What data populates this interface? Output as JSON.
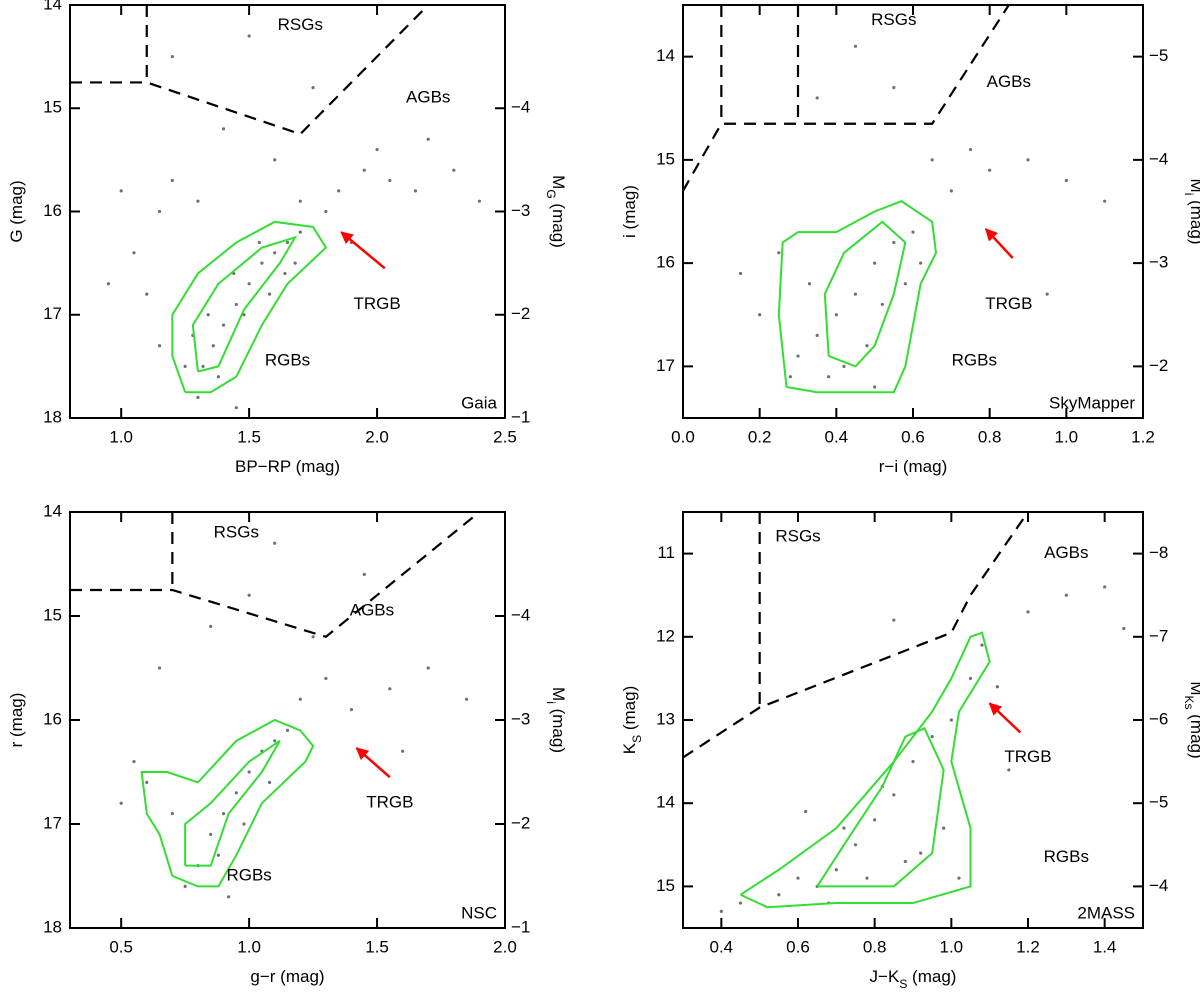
{
  "chart_data": [
    {
      "type": "scatter",
      "survey": "Gaia",
      "xlabel": [
        {
          "text": "BP−RP (mag)"
        }
      ],
      "ylabel": [
        {
          "text": "G (mag)"
        }
      ],
      "y2label": [
        {
          "text": "M"
        },
        {
          "text": "G",
          "sub": true
        },
        {
          "text": " (mag)"
        }
      ],
      "xlim": [
        0.8,
        2.5
      ],
      "xticks": [
        {
          "value": 1.0,
          "label": "1.0"
        },
        {
          "value": 1.5,
          "label": "1.5"
        },
        {
          "value": 2.0,
          "label": "2.0"
        },
        {
          "value": 2.5,
          "label": "2.5"
        }
      ],
      "ylim": [
        14,
        18
      ],
      "yticks": [
        14,
        15,
        16,
        17,
        18
      ],
      "y2lim": [
        -5,
        -1
      ],
      "y2ticks": [
        {
          "value": -4,
          "label": "−4"
        },
        {
          "value": -3,
          "label": "−3"
        },
        {
          "value": -2,
          "label": "−2"
        },
        {
          "value": -1,
          "label": "−1"
        }
      ],
      "color": "#707070",
      "contour_color": "#33dd33",
      "annotation_color": "#ff0000",
      "x": [
        1.32,
        1.36,
        1.4,
        1.45,
        1.5,
        1.55,
        1.6,
        1.65,
        1.7,
        1.28,
        1.38,
        1.48,
        1.58,
        1.68,
        1.34,
        1.44,
        1.54,
        1.64,
        1.25,
        1.3,
        1.1,
        1.05,
        1.15,
        0.95,
        1.2,
        1.85,
        1.95,
        2.05,
        2.15,
        2.3,
        2.4,
        1.9,
        2.0,
        1.6,
        1.4,
        1.2,
        1.75,
        1.5,
        1.3,
        1.0,
        2.2,
        1.8,
        1.45,
        1.7,
        1.15
      ],
      "y": [
        17.5,
        17.3,
        17.1,
        16.9,
        16.7,
        16.5,
        16.4,
        16.3,
        16.2,
        17.2,
        17.6,
        17.0,
        16.8,
        16.5,
        17.0,
        16.6,
        16.3,
        16.6,
        17.5,
        17.8,
        16.8,
        16.4,
        16.0,
        16.7,
        15.7,
        15.8,
        15.6,
        15.7,
        15.8,
        15.6,
        15.9,
        16.3,
        15.4,
        15.5,
        15.2,
        14.5,
        14.8,
        14.3,
        15.9,
        15.8,
        15.3,
        16.0,
        17.9,
        15.9,
        17.3
      ],
      "contours": [
        {
          "x": [
            1.25,
            1.2,
            1.2,
            1.3,
            1.45,
            1.6,
            1.75,
            1.8,
            1.65,
            1.55,
            1.45,
            1.35,
            1.25
          ],
          "y": [
            17.75,
            17.4,
            17.0,
            16.6,
            16.3,
            16.1,
            16.15,
            16.35,
            16.7,
            17.1,
            17.6,
            17.75,
            17.75
          ]
        },
        {
          "x": [
            1.3,
            1.28,
            1.38,
            1.55,
            1.68,
            1.62,
            1.48,
            1.38,
            1.3
          ],
          "y": [
            17.55,
            17.1,
            16.7,
            16.35,
            16.25,
            16.5,
            16.95,
            17.5,
            17.55
          ]
        }
      ],
      "boundaries": [
        {
          "x": [
            1.1,
            1.1
          ],
          "y": [
            14,
            14.75
          ]
        },
        {
          "x": [
            0.8,
            1.1,
            1.7,
            2.2
          ],
          "y": [
            14.75,
            14.75,
            15.25,
            14
          ]
        }
      ],
      "annotations": [
        {
          "text": "RSGs",
          "x": 1.7,
          "y": 14.2
        },
        {
          "text": "AGBs",
          "x": 2.2,
          "y": 14.9
        },
        {
          "text": "TRGB",
          "x": 2.0,
          "y": 16.9
        },
        {
          "text": "RGBs",
          "x": 1.65,
          "y": 17.45
        }
      ],
      "arrow": {
        "x": [
          2.03,
          1.86
        ],
        "y": [
          16.55,
          16.2
        ]
      }
    },
    {
      "type": "scatter",
      "survey": "SkyMapper",
      "xlabel": [
        {
          "text": "r−i (mag)"
        }
      ],
      "ylabel": [
        {
          "text": "i (mag)"
        }
      ],
      "y2label": [
        {
          "text": "M"
        },
        {
          "text": "i",
          "sub": true
        },
        {
          "text": " (mag)"
        }
      ],
      "xlim": [
        0.0,
        1.2
      ],
      "xticks": [
        {
          "value": 0.0,
          "label": "0.0"
        },
        {
          "value": 0.2,
          "label": "0.2"
        },
        {
          "value": 0.4,
          "label": "0.4"
        },
        {
          "value": 0.6,
          "label": "0.6"
        },
        {
          "value": 0.8,
          "label": "0.8"
        },
        {
          "value": 1.0,
          "label": "1.0"
        },
        {
          "value": 1.2,
          "label": "1.2"
        }
      ],
      "ylim": [
        13.5,
        17.5
      ],
      "yticks": [
        14,
        15,
        16,
        17
      ],
      "y2lim": [
        -5.5,
        -1.5
      ],
      "y2ticks": [
        {
          "value": -5,
          "label": "−5"
        },
        {
          "value": -4,
          "label": "−4"
        },
        {
          "value": -3,
          "label": "−3"
        },
        {
          "value": -2,
          "label": "−2"
        }
      ],
      "color": "#707070",
      "contour_color": "#33dd33",
      "annotation_color": "#ff0000",
      "x": [
        0.3,
        0.35,
        0.4,
        0.45,
        0.5,
        0.55,
        0.6,
        0.38,
        0.48,
        0.58,
        0.42,
        0.52,
        0.33,
        0.62,
        0.25,
        0.2,
        0.15,
        0.7,
        0.8,
        0.9,
        1.0,
        1.1,
        0.75,
        0.55,
        0.45,
        0.35,
        0.65,
        0.95,
        0.5,
        0.28
      ],
      "y": [
        16.9,
        16.7,
        16.5,
        16.3,
        16.0,
        15.8,
        15.7,
        17.1,
        16.8,
        16.2,
        17.0,
        16.4,
        16.2,
        16.0,
        15.9,
        16.5,
        16.1,
        15.3,
        15.1,
        15.0,
        15.2,
        15.4,
        14.9,
        14.3,
        13.9,
        14.4,
        15.0,
        16.3,
        17.2,
        17.1
      ],
      "contours": [
        {
          "x": [
            0.27,
            0.25,
            0.26,
            0.3,
            0.4,
            0.5,
            0.57,
            0.65,
            0.66,
            0.62,
            0.6,
            0.58,
            0.55,
            0.45,
            0.35,
            0.27
          ],
          "y": [
            17.2,
            16.5,
            15.8,
            15.7,
            15.7,
            15.5,
            15.4,
            15.6,
            15.9,
            16.2,
            16.6,
            17.0,
            17.25,
            17.25,
            17.25,
            17.2
          ]
        },
        {
          "x": [
            0.38,
            0.37,
            0.42,
            0.52,
            0.58,
            0.55,
            0.5,
            0.45,
            0.38
          ],
          "y": [
            16.9,
            16.3,
            15.9,
            15.6,
            15.8,
            16.3,
            16.8,
            17.0,
            16.9
          ]
        }
      ],
      "boundaries": [
        {
          "x": [
            0.1,
            0.1
          ],
          "y": [
            13.5,
            14.65
          ]
        },
        {
          "x": [
            0.3,
            0.3
          ],
          "y": [
            13.5,
            14.65
          ]
        },
        {
          "x": [
            0.0,
            0.1,
            0.65,
            0.85
          ],
          "y": [
            15.3,
            14.65,
            14.65,
            13.5
          ]
        }
      ],
      "annotations": [
        {
          "text": "RSGs",
          "x": 0.55,
          "y": 13.65
        },
        {
          "text": "AGBs",
          "x": 0.85,
          "y": 14.25
        },
        {
          "text": "TRGB",
          "x": 0.85,
          "y": 16.4
        },
        {
          "text": "RGBs",
          "x": 0.76,
          "y": 16.95
        }
      ],
      "arrow": {
        "x": [
          0.86,
          0.79
        ],
        "y": [
          15.95,
          15.67
        ]
      }
    },
    {
      "type": "scatter",
      "survey": "NSC",
      "xlabel": [
        {
          "text": "g−r (mag)"
        }
      ],
      "ylabel": [
        {
          "text": "r (mag)"
        }
      ],
      "y2label": [
        {
          "text": "M"
        },
        {
          "text": "i",
          "sub": true
        },
        {
          "text": " (mag)"
        }
      ],
      "xlim": [
        0.3,
        2.0
      ],
      "xticks": [
        {
          "value": 0.5,
          "label": "0.5"
        },
        {
          "value": 1.0,
          "label": "1.0"
        },
        {
          "value": 1.5,
          "label": "1.5"
        },
        {
          "value": 2.0,
          "label": "2.0"
        }
      ],
      "ylim": [
        14,
        18
      ],
      "yticks": [
        14,
        15,
        16,
        17,
        18
      ],
      "y2lim": [
        -5,
        -1
      ],
      "y2ticks": [
        {
          "value": -4,
          "label": "−4"
        },
        {
          "value": -3,
          "label": "−3"
        },
        {
          "value": -2,
          "label": "−2"
        },
        {
          "value": -1,
          "label": "−1"
        }
      ],
      "color": "#707070",
      "contour_color": "#33dd33",
      "annotation_color": "#ff0000",
      "x": [
        0.8,
        0.85,
        0.9,
        0.95,
        1.0,
        1.05,
        1.1,
        1.15,
        0.75,
        0.88,
        0.98,
        1.08,
        0.7,
        0.6,
        0.55,
        0.5,
        1.2,
        1.3,
        1.4,
        1.55,
        1.7,
        1.85,
        1.25,
        1.0,
        0.85,
        1.45,
        0.65,
        0.92,
        1.6,
        1.1
      ],
      "y": [
        17.4,
        17.1,
        16.9,
        16.7,
        16.5,
        16.3,
        16.2,
        16.1,
        17.6,
        17.3,
        17.0,
        16.6,
        16.9,
        16.6,
        16.4,
        16.8,
        15.8,
        15.6,
        15.9,
        15.7,
        15.5,
        15.8,
        15.2,
        14.8,
        15.1,
        14.6,
        15.5,
        17.7,
        16.3,
        14.3
      ],
      "contours": [
        {
          "x": [
            0.7,
            0.65,
            0.6,
            0.58,
            0.68,
            0.8,
            0.95,
            1.1,
            1.2,
            1.25,
            1.22,
            1.05,
            0.95,
            0.88,
            0.8,
            0.7
          ],
          "y": [
            17.5,
            17.1,
            16.9,
            16.5,
            16.5,
            16.6,
            16.2,
            16.0,
            16.1,
            16.25,
            16.4,
            16.8,
            17.3,
            17.6,
            17.6,
            17.5
          ]
        },
        {
          "x": [
            0.75,
            0.75,
            0.85,
            1.0,
            1.12,
            1.05,
            0.92,
            0.85,
            0.75
          ],
          "y": [
            17.4,
            17.0,
            16.8,
            16.4,
            16.2,
            16.5,
            16.9,
            17.4,
            17.4
          ]
        }
      ],
      "boundaries": [
        {
          "x": [
            0.7,
            0.7
          ],
          "y": [
            14,
            14.75
          ]
        },
        {
          "x": [
            0.3,
            0.7,
            1.3,
            1.9
          ],
          "y": [
            14.75,
            14.75,
            15.2,
            14
          ]
        }
      ],
      "annotations": [
        {
          "text": "RSGs",
          "x": 0.95,
          "y": 14.2
        },
        {
          "text": "AGBs",
          "x": 1.48,
          "y": 14.95
        },
        {
          "text": "TRGB",
          "x": 1.55,
          "y": 16.8
        },
        {
          "text": "RGBs",
          "x": 1.0,
          "y": 17.5
        }
      ],
      "arrow": {
        "x": [
          1.55,
          1.42
        ],
        "y": [
          16.55,
          16.27
        ]
      }
    },
    {
      "type": "scatter",
      "survey": "2MASS",
      "xlabel": [
        {
          "text": "J−K"
        },
        {
          "text": "S",
          "sub": true
        },
        {
          "text": " (mag)"
        }
      ],
      "ylabel": [
        {
          "text": "K"
        },
        {
          "text": "S",
          "sub": true
        },
        {
          "text": " (mag)"
        }
      ],
      "y2label": [
        {
          "text": "M"
        },
        {
          "text": "Ks",
          "sub": true
        },
        {
          "text": " (mag)"
        }
      ],
      "xlim": [
        0.3,
        1.5
      ],
      "xticks": [
        {
          "value": 0.4,
          "label": "0.4"
        },
        {
          "value": 0.6,
          "label": "0.6"
        },
        {
          "value": 0.8,
          "label": "0.8"
        },
        {
          "value": 1.0,
          "label": "1.0"
        },
        {
          "value": 1.2,
          "label": "1.2"
        },
        {
          "value": 1.4,
          "label": "1.4"
        }
      ],
      "ylim": [
        10.5,
        15.5
      ],
      "yticks": [
        11,
        12,
        13,
        14,
        15
      ],
      "y2lim": [
        -8.5,
        -3.5
      ],
      "y2ticks": [
        {
          "value": -8,
          "label": "−8"
        },
        {
          "value": -7,
          "label": "−7"
        },
        {
          "value": -6,
          "label": "−6"
        },
        {
          "value": -5,
          "label": "−5"
        },
        {
          "value": -4,
          "label": "−4"
        }
      ],
      "color": "#707070",
      "contour_color": "#33dd33",
      "annotation_color": "#ff0000",
      "x": [
        0.7,
        0.75,
        0.8,
        0.85,
        0.9,
        0.95,
        1.0,
        1.05,
        0.65,
        0.6,
        0.55,
        0.78,
        0.88,
        0.98,
        0.72,
        0.82,
        0.92,
        1.08,
        1.12,
        1.2,
        1.3,
        1.4,
        1.45,
        0.45,
        0.4,
        0.62,
        1.02,
        0.68,
        0.85,
        1.15
      ],
      "y": [
        14.8,
        14.5,
        14.2,
        13.9,
        13.5,
        13.2,
        13.0,
        12.5,
        15.0,
        14.9,
        15.1,
        14.9,
        14.7,
        14.3,
        14.3,
        13.8,
        14.6,
        12.1,
        12.6,
        11.7,
        11.5,
        11.4,
        11.9,
        15.2,
        15.3,
        14.1,
        14.9,
        15.2,
        11.8,
        13.6
      ],
      "contours": [
        {
          "x": [
            0.45,
            0.55,
            0.7,
            0.85,
            0.95,
            1.0,
            1.05,
            1.08,
            1.1,
            1.02,
            1.0,
            1.05,
            1.05,
            0.9,
            0.7,
            0.52,
            0.45
          ],
          "y": [
            15.1,
            14.8,
            14.3,
            13.5,
            12.9,
            12.5,
            12.0,
            11.95,
            12.3,
            12.9,
            13.5,
            14.3,
            15.0,
            15.2,
            15.2,
            15.25,
            15.1
          ]
        },
        {
          "x": [
            0.65,
            0.72,
            0.82,
            0.88,
            0.93,
            0.98,
            0.95,
            0.85,
            0.65
          ],
          "y": [
            15.0,
            14.5,
            13.8,
            13.2,
            13.1,
            13.6,
            14.6,
            15.0,
            15.0
          ]
        }
      ],
      "boundaries": [
        {
          "x": [
            0.5,
            0.5
          ],
          "y": [
            10.5,
            12.85
          ]
        },
        {
          "x": [
            0.3,
            0.5,
            1.0,
            1.05,
            1.2
          ],
          "y": [
            13.45,
            12.85,
            11.95,
            11.5,
            10.5
          ]
        }
      ],
      "annotations": [
        {
          "text": "RSGs",
          "x": 0.6,
          "y": 10.8
        },
        {
          "text": "AGBs",
          "x": 1.3,
          "y": 11.0
        },
        {
          "text": "TRGB",
          "x": 1.2,
          "y": 13.45
        },
        {
          "text": "RGBs",
          "x": 1.3,
          "y": 14.65
        }
      ],
      "arrow": {
        "x": [
          1.18,
          1.1
        ],
        "y": [
          13.15,
          12.8
        ]
      }
    }
  ]
}
